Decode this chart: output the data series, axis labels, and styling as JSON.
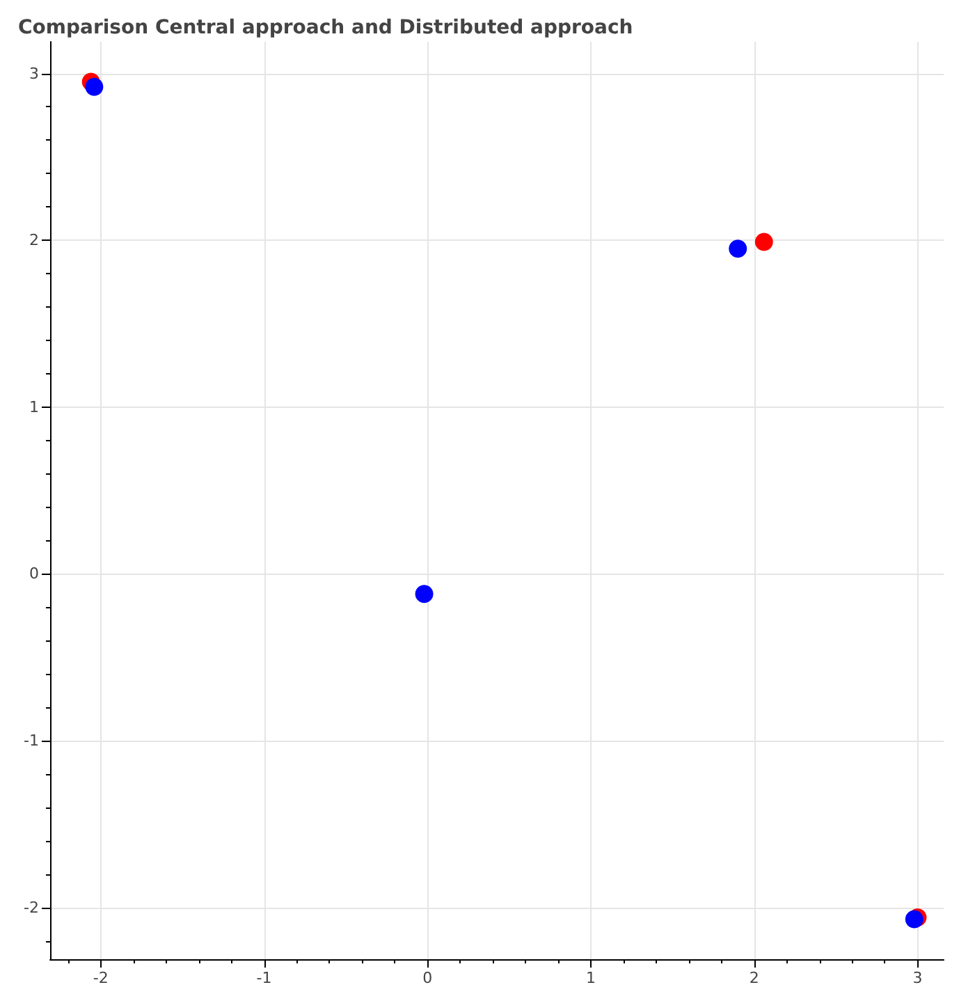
{
  "chart_data": {
    "type": "scatter",
    "title": "Comparison Central approach and Distributed approach",
    "series": [
      {
        "color": "#ff0000",
        "x": [
          -2.06,
          2.06,
          3.0
        ],
        "values": [
          2.95,
          1.99,
          -2.06
        ]
      },
      {
        "color": "#0000ff",
        "x": [
          -2.04,
          1.9,
          -0.02,
          2.98
        ],
        "values": [
          2.92,
          1.95,
          -0.12,
          -2.07
        ]
      }
    ],
    "xlim": [
      -2.31,
      3.16
    ],
    "ylim": [
      -2.31,
      3.19
    ],
    "xticks": [
      -2,
      -1,
      0,
      1,
      2,
      3
    ],
    "yticks": [
      -2,
      -1,
      0,
      1,
      2,
      3
    ],
    "grid": true,
    "marker": "circle"
  }
}
